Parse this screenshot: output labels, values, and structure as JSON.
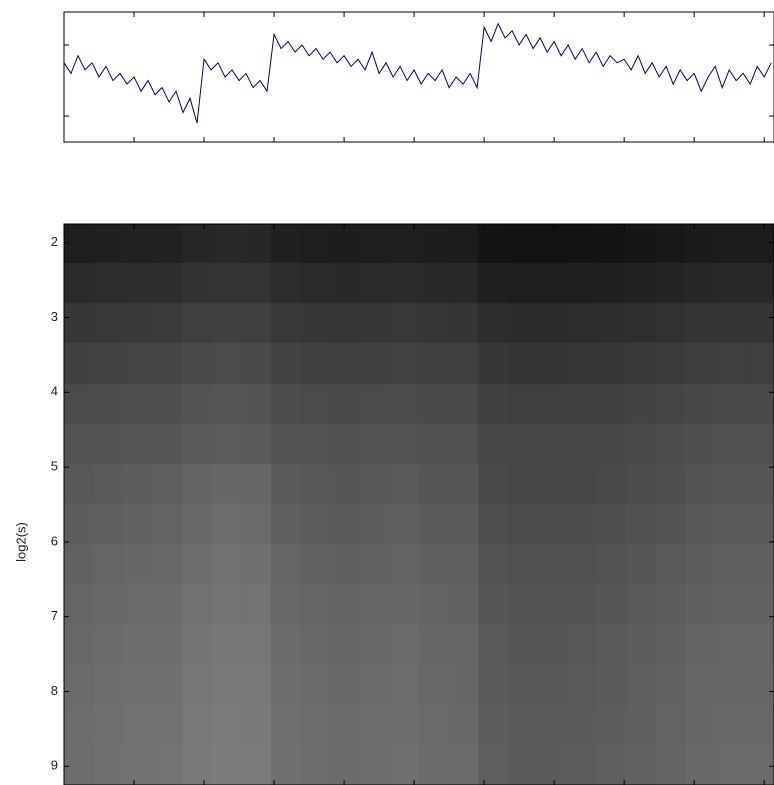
{
  "chart_data": [
    {
      "type": "line",
      "x": [
        0,
        10,
        20,
        30,
        40,
        50,
        60,
        70,
        80,
        90,
        100,
        110,
        120,
        130,
        140,
        150,
        160,
        170,
        180,
        190,
        200,
        210,
        220,
        230,
        240,
        250,
        260,
        270,
        280,
        290,
        300,
        310,
        320,
        330,
        340,
        350,
        360,
        370,
        380,
        390,
        400,
        410,
        420,
        430,
        440,
        450,
        460,
        470,
        480,
        490,
        500,
        510,
        520,
        530,
        540,
        550,
        560,
        570,
        580,
        590,
        600,
        610,
        620,
        630,
        640,
        650,
        660,
        670,
        680,
        690,
        700,
        710,
        720,
        730,
        740,
        750,
        760,
        770,
        780,
        790,
        800,
        810,
        820,
        830,
        840,
        850,
        860,
        870,
        880,
        890,
        900,
        910,
        920,
        930,
        940,
        950,
        960,
        970,
        980,
        990,
        1000,
        1010
      ],
      "values": [
        0.5,
        0.2,
        0.7,
        0.3,
        0.5,
        0.1,
        0.4,
        0.0,
        0.2,
        -0.1,
        0.1,
        -0.3,
        0.0,
        -0.4,
        -0.2,
        -0.6,
        -0.3,
        -0.9,
        -0.5,
        -1.2,
        0.6,
        0.3,
        0.5,
        0.1,
        0.3,
        0.0,
        0.2,
        -0.2,
        0.0,
        -0.3,
        1.3,
        0.9,
        1.1,
        0.8,
        1.0,
        0.7,
        0.9,
        0.6,
        0.8,
        0.5,
        0.7,
        0.4,
        0.6,
        0.3,
        0.8,
        0.2,
        0.5,
        0.1,
        0.4,
        0.0,
        0.3,
        -0.1,
        0.2,
        0.0,
        0.3,
        -0.2,
        0.1,
        -0.1,
        0.2,
        -0.2,
        1.5,
        1.1,
        1.6,
        1.2,
        1.4,
        1.0,
        1.3,
        0.9,
        1.2,
        0.8,
        1.1,
        0.7,
        1.0,
        0.6,
        0.9,
        0.5,
        0.8,
        0.4,
        0.7,
        0.5,
        0.6,
        0.3,
        0.7,
        0.2,
        0.5,
        0.1,
        0.4,
        -0.1,
        0.3,
        0.0,
        0.2,
        -0.3,
        0.1,
        0.4,
        -0.2,
        0.3,
        0.0,
        0.2,
        -0.1,
        0.4,
        0.1,
        0.5
      ],
      "color": "#000080",
      "xlim": [
        0,
        1014
      ],
      "xticks": [
        0,
        100,
        200,
        300,
        400,
        500,
        600,
        700,
        800,
        900,
        1000
      ],
      "ylim": [
        -1.73,
        1.93
      ],
      "yticks": [
        -1,
        1
      ]
    },
    {
      "type": "heatmap",
      "y_label": "log2(s)",
      "colormap": "gray",
      "zlim": [
        0,
        255
      ],
      "xlim": [
        0,
        1014
      ],
      "xticks": [
        0,
        100,
        200,
        300,
        400,
        500,
        600,
        700,
        800,
        900,
        1000
      ],
      "ylim": [
        1.75,
        9.25
      ],
      "y_reversed": true,
      "yticks": [
        2,
        3,
        4,
        5,
        6,
        7,
        8,
        9
      ],
      "x_edges": [
        0,
        42.25,
        84.5,
        126.75,
        169,
        211.25,
        253.5,
        295.75,
        338,
        380.25,
        422.5,
        464.75,
        507,
        549.25,
        591.5,
        633.75,
        676,
        718.25,
        760.5,
        802.75,
        845,
        887.25,
        929.5,
        971.75,
        1014
      ],
      "y_edges": [
        1.75,
        2.27,
        2.81,
        3.34,
        3.89,
        4.42,
        4.96,
        5.49,
        6.03,
        6.56,
        7.1,
        7.63,
        8.17,
        8.7,
        9.25
      ],
      "z": [
        [
          30,
          32,
          33,
          34,
          38,
          40,
          39,
          32,
          30,
          29,
          30,
          31,
          29,
          28,
          20,
          18,
          18,
          19,
          20,
          22,
          24,
          27,
          28,
          28
        ],
        [
          42,
          44,
          45,
          46,
          50,
          52,
          51,
          44,
          42,
          41,
          42,
          43,
          41,
          40,
          32,
          30,
          30,
          31,
          32,
          34,
          36,
          39,
          40,
          40
        ],
        [
          55,
          57,
          58,
          59,
          63,
          65,
          64,
          57,
          55,
          54,
          55,
          56,
          54,
          53,
          45,
          43,
          43,
          44,
          45,
          47,
          49,
          52,
          53,
          53
        ],
        [
          65,
          67,
          68,
          69,
          73,
          75,
          74,
          67,
          65,
          64,
          65,
          66,
          64,
          63,
          55,
          53,
          53,
          54,
          55,
          57,
          59,
          62,
          63,
          63
        ],
        [
          75,
          77,
          78,
          79,
          83,
          85,
          84,
          77,
          75,
          74,
          75,
          76,
          74,
          73,
          65,
          63,
          63,
          64,
          65,
          67,
          69,
          72,
          73,
          73
        ],
        [
          82,
          84,
          85,
          86,
          90,
          92,
          91,
          84,
          82,
          81,
          82,
          83,
          81,
          80,
          72,
          70,
          70,
          71,
          72,
          74,
          76,
          79,
          80,
          80
        ],
        [
          88,
          91,
          93,
          94,
          100,
          103,
          102,
          91,
          88,
          86,
          88,
          90,
          86,
          85,
          73,
          70,
          70,
          71,
          73,
          76,
          79,
          83,
          85,
          85
        ],
        [
          93,
          96,
          98,
          99,
          105,
          108,
          107,
          96,
          93,
          91,
          93,
          95,
          91,
          90,
          78,
          75,
          75,
          76,
          78,
          81,
          84,
          88,
          90,
          90
        ],
        [
          98,
          101,
          103,
          104,
          110,
          113,
          112,
          101,
          98,
          96,
          98,
          100,
          96,
          95,
          83,
          80,
          80,
          81,
          83,
          86,
          89,
          93,
          95,
          95
        ],
        [
          101,
          104,
          106,
          107,
          113,
          116,
          115,
          104,
          101,
          99,
          101,
          103,
          99,
          98,
          86,
          83,
          83,
          84,
          86,
          89,
          92,
          96,
          98,
          98
        ],
        [
          104,
          107,
          109,
          110,
          116,
          119,
          118,
          107,
          104,
          102,
          104,
          106,
          102,
          101,
          89,
          86,
          86,
          87,
          89,
          92,
          95,
          99,
          101,
          101
        ],
        [
          106,
          109,
          111,
          112,
          118,
          121,
          120,
          109,
          106,
          104,
          106,
          108,
          104,
          103,
          91,
          88,
          88,
          89,
          91,
          94,
          97,
          101,
          103,
          103
        ],
        [
          108,
          111,
          113,
          114,
          120,
          123,
          122,
          111,
          108,
          106,
          108,
          110,
          106,
          105,
          93,
          90,
          90,
          91,
          93,
          96,
          99,
          103,
          105,
          105
        ],
        [
          109,
          112,
          114,
          115,
          121,
          124,
          123,
          112,
          109,
          107,
          109,
          111,
          107,
          106,
          94,
          91,
          91,
          92,
          94,
          97,
          100,
          104,
          106,
          106
        ]
      ]
    }
  ]
}
